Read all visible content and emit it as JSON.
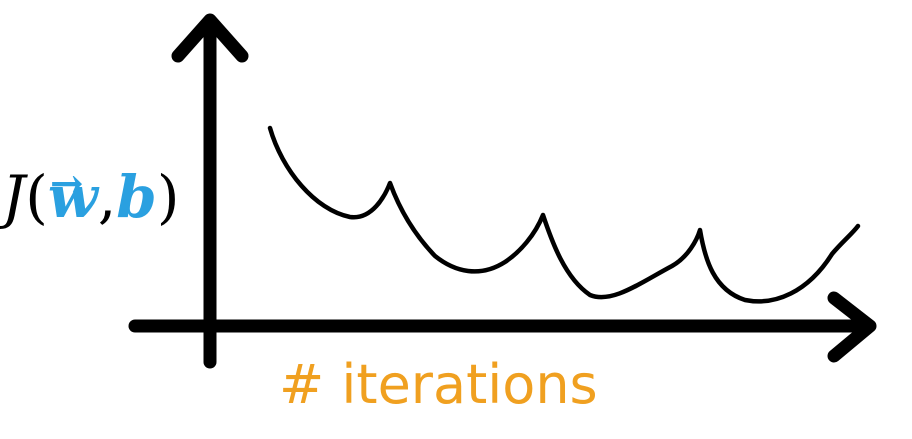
{
  "diagram": {
    "y_label": {
      "function": "J",
      "open_paren": "(",
      "param_w": "w",
      "vector_arrow": "→",
      "comma": ",",
      "param_b": "b",
      "close_paren": ")"
    },
    "x_label": "# iterations",
    "colors": {
      "axes": "#000000",
      "curve": "#000000",
      "params": "#2aa0e0",
      "x_label": "#f0a020"
    }
  }
}
